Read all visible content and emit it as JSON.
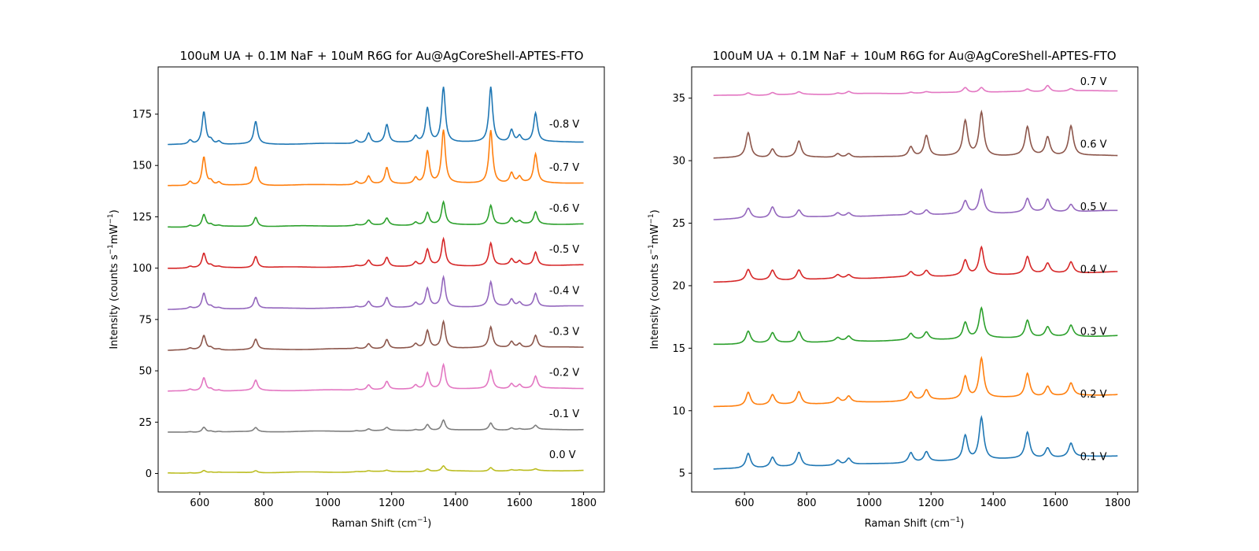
{
  "chart_data": [
    {
      "type": "line",
      "title": "100uM UA + 0.1M NaF + 10uM R6G for Au@AgCoreShell-APTES-FTO",
      "xlabel_main": "Raman Shift (cm",
      "xlabel_sup": "−1",
      "xlabel_end": ")",
      "ylabel_main": "Intensity (counts s",
      "ylabel_sup1": "−1",
      "ylabel_mid": "mW",
      "ylabel_sup2": "−1",
      "ylabel_end": ")",
      "xlim": [
        470,
        1865
      ],
      "ylim": [
        -9,
        198
      ],
      "xticks": [
        600,
        800,
        1000,
        1200,
        1400,
        1600,
        1800
      ],
      "yticks": [
        0,
        25,
        50,
        75,
        100,
        125,
        150,
        175
      ],
      "tick_labels_x": [
        "600",
        "800",
        "1000",
        "1200",
        "1400",
        "1600",
        "1800"
      ],
      "tick_labels_y": [
        "0",
        "25",
        "50",
        "75",
        "100",
        "125",
        "150",
        "175"
      ],
      "grid": false,
      "peak_positions": [
        570,
        613,
        635,
        660,
        775,
        1090,
        1128,
        1185,
        1275,
        1312,
        1362,
        1510,
        1575,
        1600,
        1650
      ],
      "series": [
        {
          "name": "-0.8 V",
          "color": "#1f77b4",
          "baseline_start": 160,
          "baseline_end": 161.5,
          "label_y": 170,
          "peaks": [
            2,
            16,
            2,
            1.5,
            11,
            1.5,
            5,
            9,
            3,
            17,
            27,
            27,
            6,
            3,
            14
          ]
        },
        {
          "name": "-0.7 V",
          "color": "#ff7f0e",
          "baseline_start": 140,
          "baseline_end": 141.5,
          "label_y": 149,
          "peaks": [
            2,
            14,
            2,
            1.5,
            9,
            1.5,
            4,
            8,
            3,
            16,
            26,
            26,
            5,
            3,
            14
          ]
        },
        {
          "name": "-0.6 V",
          "color": "#2ca02c",
          "baseline_start": 120,
          "baseline_end": 121.5,
          "label_y": 129,
          "peaks": [
            0.8,
            6,
            1,
            0.5,
            4.5,
            0.5,
            2.5,
            3.5,
            1.5,
            6,
            11,
            9.5,
            3,
            1.5,
            6
          ]
        },
        {
          "name": "-0.5 V",
          "color": "#d62728",
          "baseline_start": 100,
          "baseline_end": 101.5,
          "label_y": 109,
          "peaks": [
            0.8,
            7,
            1,
            0.5,
            5.5,
            0.5,
            3,
            4.5,
            2,
            8,
            13,
            11,
            3,
            2,
            6.5
          ]
        },
        {
          "name": "-0.4 V",
          "color": "#9467bd",
          "baseline_start": 80,
          "baseline_end": 81.5,
          "label_y": 89,
          "peaks": [
            0.8,
            7.5,
            1,
            0.5,
            5.5,
            0.5,
            3,
            5,
            2,
            9,
            14.5,
            12,
            3.5,
            2,
            6.5
          ]
        },
        {
          "name": "-0.3 V",
          "color": "#8c564b",
          "baseline_start": 60,
          "baseline_end": 61.5,
          "label_y": 69,
          "peaks": [
            0.8,
            7,
            1,
            0.5,
            5,
            0.5,
            2.5,
            4.5,
            2,
            8.5,
            13,
            10,
            3,
            2,
            6
          ]
        },
        {
          "name": "-0.2 V",
          "color": "#e377c2",
          "baseline_start": 40,
          "baseline_end": 41.5,
          "label_y": 49,
          "peaks": [
            0.8,
            6.5,
            1,
            0.5,
            5,
            0.5,
            2.5,
            4,
            2,
            8,
            12,
            9,
            2.5,
            2,
            6
          ]
        },
        {
          "name": "-0.1 V",
          "color": "#7f7f7f",
          "baseline_start": 20,
          "baseline_end": 21.5,
          "label_y": 29,
          "peaks": [
            0.3,
            2.5,
            0.5,
            0.3,
            2,
            0.3,
            1,
            1.5,
            0.5,
            3,
            5,
            3.5,
            1,
            0.5,
            2
          ]
        },
        {
          "name": "0.0 V",
          "color": "#bcbd22",
          "baseline_start": 0.2,
          "baseline_end": 1.5,
          "label_y": 9,
          "peaks": [
            0.2,
            1.2,
            0.3,
            0.2,
            1,
            0.2,
            0.4,
            0.6,
            0.3,
            1.2,
            2.5,
            1.8,
            0.5,
            0.3,
            0.8
          ]
        }
      ]
    },
    {
      "type": "line",
      "title": "100uM UA + 0.1M NaF + 10uM R6G for Au@AgCoreShell-APTES-FTO",
      "xlabel_main": "Raman Shift (cm",
      "xlabel_sup": "−1",
      "xlabel_end": ")",
      "ylabel_main": "Intensity (counts s",
      "ylabel_sup1": "−1",
      "ylabel_mid": "mW",
      "ylabel_sup2": "−1",
      "ylabel_end": ")",
      "xlim": [
        430,
        1865
      ],
      "ylim": [
        3.5,
        37.5
      ],
      "xticks": [
        600,
        800,
        1000,
        1200,
        1400,
        1600,
        1800
      ],
      "yticks": [
        5,
        10,
        15,
        20,
        25,
        30,
        35
      ],
      "tick_labels_x": [
        "600",
        "800",
        "1000",
        "1200",
        "1400",
        "1600",
        "1800"
      ],
      "tick_labels_y": [
        "5",
        "10",
        "15",
        "20",
        "25",
        "30",
        "35"
      ],
      "grid": false,
      "peak_positions": [
        612,
        690,
        775,
        900,
        935,
        1135,
        1185,
        1310,
        1362,
        1510,
        1575,
        1650
      ],
      "series": [
        {
          "name": "0.1 V",
          "color": "#1f77b4",
          "baseline_start": 5.3,
          "baseline_end": 6.4,
          "label_y": 6.3,
          "peaks": [
            1.2,
            0.8,
            1.1,
            0.4,
            0.5,
            0.8,
            0.8,
            2.0,
            3.4,
            2.1,
            0.8,
            1.1
          ]
        },
        {
          "name": "0.2 V",
          "color": "#ff7f0e",
          "baseline_start": 10.3,
          "baseline_end": 11.3,
          "label_y": 11.3,
          "peaks": [
            1.1,
            0.8,
            1.0,
            0.4,
            0.5,
            0.7,
            0.8,
            1.8,
            3.2,
            1.9,
            0.8,
            1.0
          ]
        },
        {
          "name": "0.3 V",
          "color": "#2ca02c",
          "baseline_start": 15.3,
          "baseline_end": 16.0,
          "label_y": 16.3,
          "peaks": [
            1.0,
            0.8,
            0.9,
            0.3,
            0.4,
            0.5,
            0.6,
            1.3,
            2.4,
            1.4,
            0.8,
            0.9
          ]
        },
        {
          "name": "0.4 V",
          "color": "#d62728",
          "baseline_start": 20.3,
          "baseline_end": 21.1,
          "label_y": 21.3,
          "peaks": [
            0.9,
            0.8,
            0.8,
            0.3,
            0.3,
            0.4,
            0.5,
            1.2,
            2.2,
            1.4,
            0.8,
            0.9
          ]
        },
        {
          "name": "0.5 V",
          "color": "#9467bd",
          "baseline_start": 25.3,
          "baseline_end": 26.0,
          "label_y": 26.3,
          "peaks": [
            0.8,
            0.9,
            0.6,
            0.3,
            0.3,
            0.3,
            0.4,
            1.0,
            1.9,
            1.1,
            1.0,
            0.6
          ]
        },
        {
          "name": "0.6 V",
          "color": "#8c564b",
          "baseline_start": 30.2,
          "baseline_end": 30.4,
          "label_y": 31.3,
          "peaks": [
            2.0,
            0.7,
            1.3,
            0.3,
            0.3,
            0.8,
            1.7,
            2.8,
            3.5,
            2.3,
            1.5,
            2.4
          ]
        },
        {
          "name": "0.7 V",
          "color": "#e377c2",
          "baseline_start": 35.2,
          "baseline_end": 35.6,
          "label_y": 36.3,
          "peaks": [
            0.2,
            0.2,
            0.2,
            0.1,
            0.2,
            0.1,
            0.1,
            0.4,
            0.4,
            0.2,
            0.5,
            0.2
          ]
        }
      ]
    }
  ]
}
